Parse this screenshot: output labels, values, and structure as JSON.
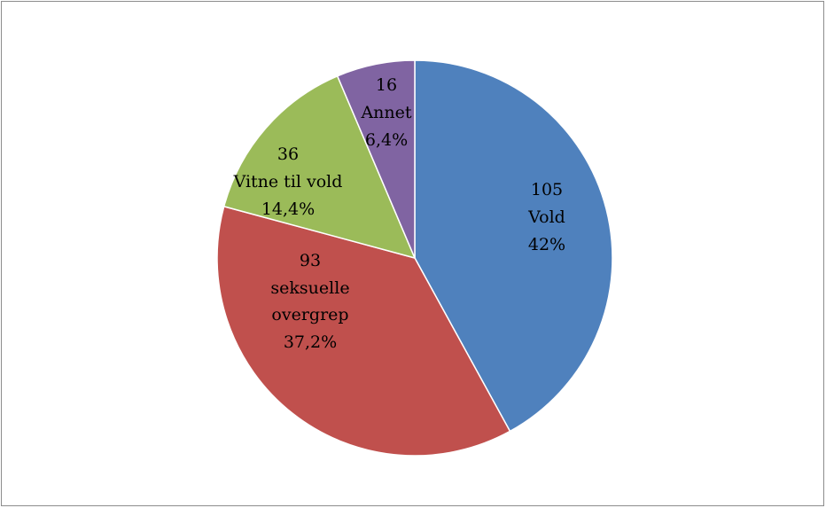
{
  "chart_data": {
    "type": "pie",
    "categories": [
      "Vold",
      "seksuelle overgrep",
      "Vitne til vold",
      "Annet"
    ],
    "values": [
      105,
      93,
      36,
      16
    ],
    "percentages": [
      42,
      37.2,
      14.4,
      6.4
    ],
    "percentage_labels": [
      "42%",
      "37,2%",
      "14,4%",
      "6,4%"
    ],
    "colors": [
      "#4f81bd",
      "#c0504d",
      "#9bbb59",
      "#8064a2"
    ]
  }
}
